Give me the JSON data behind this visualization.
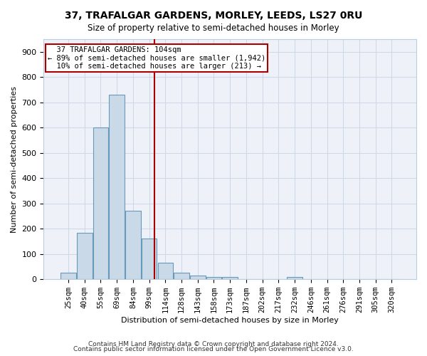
{
  "title1": "37, TRAFALGAR GARDENS, MORLEY, LEEDS, LS27 0RU",
  "title2": "Size of property relative to semi-detached houses in Morley",
  "xlabel": "Distribution of semi-detached houses by size in Morley",
  "ylabel": "Number of semi-detached properties",
  "bar_labels": [
    "25sqm",
    "40sqm",
    "55sqm",
    "69sqm",
    "84sqm",
    "99sqm",
    "114sqm",
    "128sqm",
    "143sqm",
    "158sqm",
    "173sqm",
    "187sqm",
    "202sqm",
    "217sqm",
    "232sqm",
    "246sqm",
    "261sqm",
    "276sqm",
    "291sqm",
    "305sqm",
    "320sqm"
  ],
  "bar_values": [
    25,
    185,
    600,
    730,
    270,
    160,
    65,
    25,
    15,
    10,
    10,
    0,
    0,
    0,
    10,
    0,
    0,
    0,
    0,
    0,
    0
  ],
  "bar_color": "#c9d9e8",
  "bar_edgecolor": "#6699bb",
  "property_size": 104,
  "property_label": "37 TRAFALGAR GARDENS: 104sqm",
  "pct_smaller": 89,
  "num_smaller": 1942,
  "pct_larger": 10,
  "num_larger": 213,
  "vline_color": "#aa0000",
  "annotation_box_color": "#aa0000",
  "annotation_text_color": "#000000",
  "grid_color": "#d0d8e8",
  "bg_color": "#eef2f8",
  "ylim": [
    0,
    950
  ],
  "footer1": "Contains HM Land Registry data © Crown copyright and database right 2024.",
  "footer2": "Contains public sector information licensed under the Open Government Licence v3.0.",
  "bin_width": 15,
  "vline_x": 104
}
